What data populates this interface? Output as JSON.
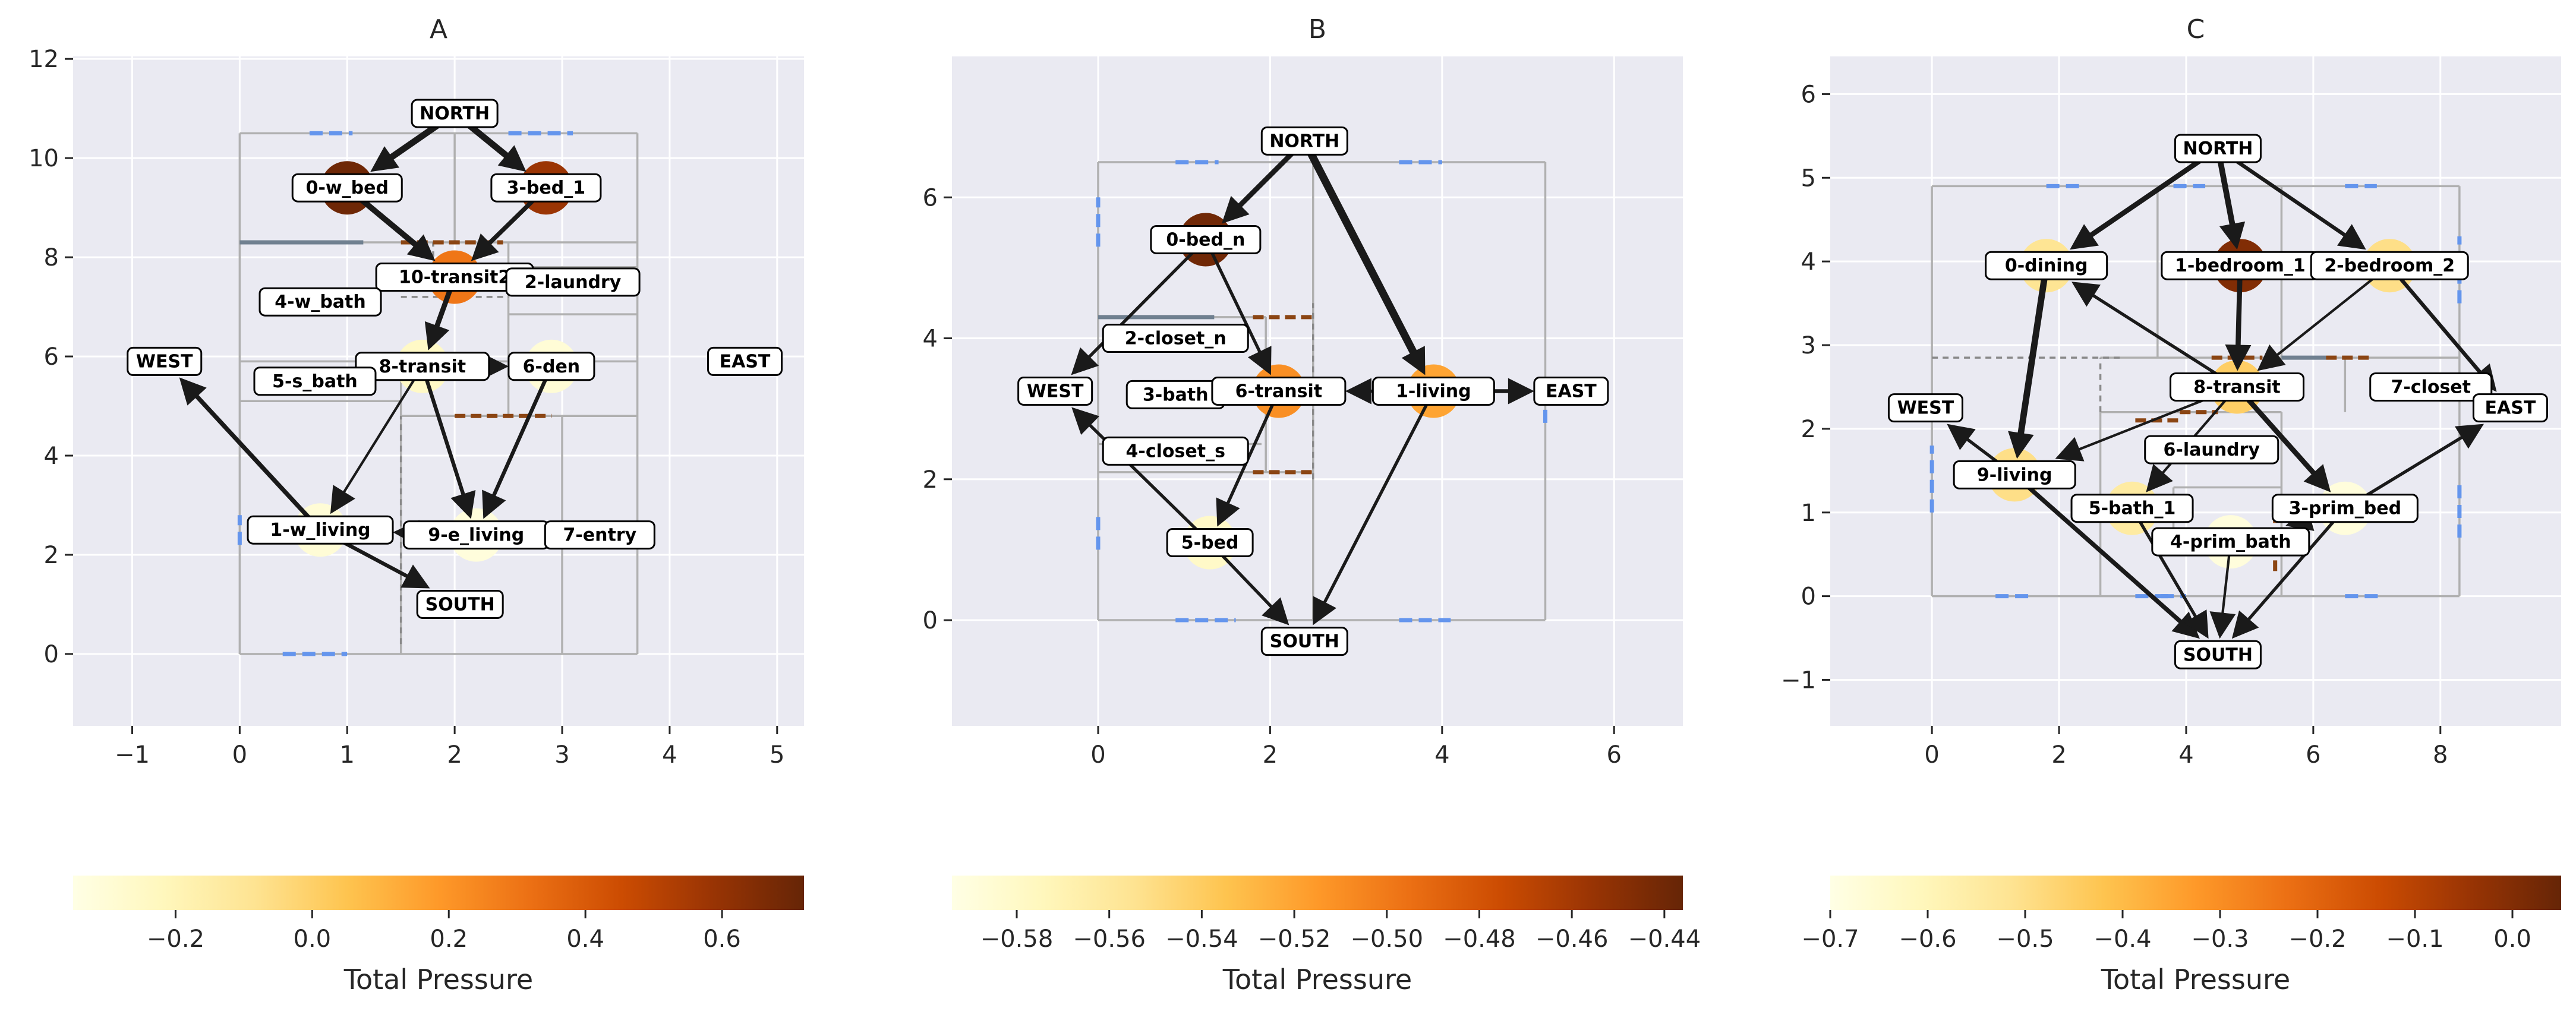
{
  "panels": [
    {
      "title": "A",
      "xlim": [
        -1.55,
        5.25
      ],
      "ylim": [
        -1.45,
        12.05
      ],
      "xticks": [
        -1,
        0,
        1,
        2,
        3,
        4,
        5
      ],
      "yticks": [
        0,
        2,
        4,
        6,
        8,
        10,
        12
      ],
      "walls": [
        [
          0,
          0,
          3.7,
          0
        ],
        [
          3.7,
          0,
          3.7,
          10.5
        ],
        [
          0,
          10.5,
          3.7,
          10.5
        ],
        [
          0,
          0,
          0,
          10.5
        ],
        [
          0,
          8.3,
          3.7,
          8.3
        ],
        [
          0,
          5.9,
          3.7,
          5.9
        ],
        [
          0,
          5.1,
          1.5,
          5.1
        ],
        [
          2.0,
          8.3,
          2.0,
          10.5
        ],
        [
          2.5,
          4.8,
          2.5,
          8.3
        ],
        [
          2.5,
          6.85,
          3.7,
          6.85
        ],
        [
          2.5,
          7.8,
          3.7,
          7.8
        ],
        [
          1.5,
          4.8,
          3.7,
          4.8
        ],
        [
          3.0,
          0,
          3.0,
          4.8
        ],
        [
          1.5,
          0,
          1.5,
          5.9
        ]
      ],
      "doors": [
        [
          1.5,
          0.2,
          1.5,
          4.8
        ],
        [
          1.5,
          7.2,
          2.5,
          7.2
        ],
        [
          1.8,
          8.0,
          1.8,
          8.3
        ]
      ],
      "windows": [
        [
          0.65,
          10.5,
          1.05,
          10.5
        ],
        [
          2.5,
          10.5,
          3.1,
          10.5
        ],
        [
          0.4,
          0,
          1.0,
          0
        ],
        [
          0,
          2.2,
          0,
          2.8
        ]
      ],
      "panes": [
        [
          0,
          8.3,
          1.15,
          8.3
        ]
      ],
      "openings": [
        [
          1.5,
          8.3,
          2.45,
          8.3
        ],
        [
          2.0,
          4.8,
          2.9,
          4.8
        ]
      ],
      "nodes": [
        {
          "id": "NORTH",
          "x": 2.0,
          "y": 10.9,
          "p": null
        },
        {
          "id": "0-w_bed",
          "x": 1.0,
          "y": 9.4,
          "p": 0.7
        },
        {
          "id": "3-bed_1",
          "x": 2.85,
          "y": 9.4,
          "p": 0.58
        },
        {
          "id": "10-transit2",
          "x": 2.0,
          "y": 7.6,
          "p": 0.3
        },
        {
          "id": "2-laundry",
          "x": 3.1,
          "y": 7.5,
          "p": null
        },
        {
          "id": "4-w_bath",
          "x": 0.75,
          "y": 7.1,
          "p": null
        },
        {
          "id": "8-transit",
          "x": 1.7,
          "y": 5.8,
          "p": -0.25
        },
        {
          "id": "6-den",
          "x": 2.9,
          "y": 5.8,
          "p": -0.3
        },
        {
          "id": "WEST",
          "x": -0.7,
          "y": 5.9,
          "p": null
        },
        {
          "id": "EAST",
          "x": 4.7,
          "y": 5.9,
          "p": null
        },
        {
          "id": "5-s_bath",
          "x": 0.7,
          "y": 5.5,
          "p": null
        },
        {
          "id": "1-w_living",
          "x": 0.75,
          "y": 2.5,
          "p": -0.3
        },
        {
          "id": "9-e_living",
          "x": 2.2,
          "y": 2.4,
          "p": -0.32
        },
        {
          "id": "7-entry",
          "x": 3.35,
          "y": 2.4,
          "p": null
        },
        {
          "id": "SOUTH",
          "x": 2.05,
          "y": 1.0,
          "p": null
        }
      ],
      "edges": [
        {
          "from": "NORTH",
          "to": "0-w_bed",
          "w": 8
        },
        {
          "from": "NORTH",
          "to": "3-bed_1",
          "w": 8
        },
        {
          "from": "0-w_bed",
          "to": "10-transit2",
          "w": 7
        },
        {
          "from": "3-bed_1",
          "to": "10-transit2",
          "w": 5
        },
        {
          "from": "10-transit2",
          "to": "8-transit",
          "w": 6
        },
        {
          "from": "8-transit",
          "to": "6-den",
          "w": 3
        },
        {
          "from": "8-transit",
          "to": "1-w_living",
          "w": 2
        },
        {
          "from": "8-transit",
          "to": "9-e_living",
          "w": 4
        },
        {
          "from": "6-den",
          "to": "9-e_living",
          "w": 4
        },
        {
          "from": "9-e_living",
          "to": "1-w_living",
          "w": 5
        },
        {
          "from": "1-w_living",
          "to": "WEST",
          "w": 5
        },
        {
          "from": "1-w_living",
          "to": "SOUTH",
          "w": 4
        }
      ],
      "colorbar": {
        "min": -0.35,
        "max": 0.72,
        "ticks": [
          -0.2,
          0.0,
          0.2,
          0.4,
          0.6
        ],
        "label": "Total Pressure"
      }
    },
    {
      "title": "B",
      "xlim": [
        -1.7,
        6.8
      ],
      "ylim": [
        -1.5,
        8.0
      ],
      "xticks": [
        0,
        2,
        4,
        6
      ],
      "yticks": [
        0,
        2,
        4,
        6
      ],
      "walls": [
        [
          0,
          0,
          5.2,
          0
        ],
        [
          5.2,
          0,
          5.2,
          6.5
        ],
        [
          0,
          6.5,
          5.2,
          6.5
        ],
        [
          0,
          0,
          0,
          6.5
        ],
        [
          2.5,
          0,
          2.5,
          6.5
        ],
        [
          0,
          4.3,
          1.95,
          4.3
        ],
        [
          1.95,
          2.1,
          1.95,
          4.3
        ],
        [
          0,
          2.1,
          2.5,
          2.1
        ],
        [
          0,
          2.5,
          1.9,
          2.5
        ]
      ],
      "doors": [
        [
          2.5,
          2.0,
          2.5,
          4.5
        ]
      ],
      "windows": [
        [
          0.9,
          6.5,
          1.4,
          6.5
        ],
        [
          3.5,
          6.5,
          4.0,
          6.5
        ],
        [
          0.9,
          0,
          1.6,
          0
        ],
        [
          3.5,
          0,
          4.1,
          0
        ],
        [
          0,
          5.3,
          0,
          6.0
        ],
        [
          0,
          1.0,
          0,
          1.5
        ],
        [
          5.2,
          2.8,
          5.2,
          3.2
        ]
      ],
      "panes": [
        [
          0,
          4.3,
          1.35,
          4.3
        ]
      ],
      "openings": [
        [
          1.8,
          4.3,
          2.5,
          4.3
        ],
        [
          1.8,
          2.1,
          2.5,
          2.1
        ]
      ],
      "nodes": [
        {
          "id": "NORTH",
          "x": 2.4,
          "y": 6.8,
          "p": null
        },
        {
          "id": "0-bed_n",
          "x": 1.25,
          "y": 5.4,
          "p": -0.44
        },
        {
          "id": "2-closet_n",
          "x": 0.9,
          "y": 4.0,
          "p": null
        },
        {
          "id": "WEST",
          "x": -0.5,
          "y": 3.25,
          "p": null
        },
        {
          "id": "3-bath",
          "x": 0.9,
          "y": 3.2,
          "p": null
        },
        {
          "id": "6-transit",
          "x": 2.1,
          "y": 3.25,
          "p": -0.51
        },
        {
          "id": "1-living",
          "x": 3.9,
          "y": 3.25,
          "p": -0.52
        },
        {
          "id": "EAST",
          "x": 5.5,
          "y": 3.25,
          "p": null
        },
        {
          "id": "4-closet_s",
          "x": 0.9,
          "y": 2.4,
          "p": null
        },
        {
          "id": "5-bed",
          "x": 1.3,
          "y": 1.1,
          "p": -0.58
        },
        {
          "id": "SOUTH",
          "x": 2.4,
          "y": -0.3,
          "p": null
        }
      ],
      "edges": [
        {
          "from": "NORTH",
          "to": "0-bed_n",
          "w": 6
        },
        {
          "from": "NORTH",
          "to": "1-living",
          "w": 10
        },
        {
          "from": "0-bed_n",
          "to": "WEST",
          "w": 3
        },
        {
          "from": "0-bed_n",
          "to": "6-transit",
          "w": 3
        },
        {
          "from": "6-transit",
          "to": "5-bed",
          "w": 3
        },
        {
          "from": "1-living",
          "to": "6-transit",
          "w": 3
        },
        {
          "from": "1-living",
          "to": "EAST",
          "w": 4
        },
        {
          "from": "1-living",
          "to": "SOUTH",
          "w": 3
        },
        {
          "from": "5-bed",
          "to": "WEST",
          "w": 3
        },
        {
          "from": "5-bed",
          "to": "SOUTH",
          "w": 3
        }
      ],
      "colorbar": {
        "min": -0.594,
        "max": -0.436,
        "ticks": [
          -0.58,
          -0.56,
          -0.54,
          -0.52,
          -0.5,
          -0.48,
          -0.46,
          -0.44
        ],
        "label": "Total Pressure"
      }
    },
    {
      "title": "C",
      "xlim": [
        -1.6,
        9.9
      ],
      "ylim": [
        -1.55,
        6.45
      ],
      "xticks": [
        0,
        2,
        4,
        6,
        8
      ],
      "yticks": [
        -1,
        0,
        1,
        2,
        3,
        4,
        5,
        6
      ],
      "walls": [
        [
          0,
          0,
          8.3,
          0
        ],
        [
          8.3,
          0,
          8.3,
          4.9
        ],
        [
          0,
          4.9,
          8.3,
          4.9
        ],
        [
          0,
          0,
          0,
          4.9
        ],
        [
          3.55,
          2.85,
          3.55,
          4.9
        ],
        [
          5.5,
          2.85,
          5.5,
          4.9
        ],
        [
          2.65,
          2.85,
          8.3,
          2.85
        ],
        [
          6.5,
          2.2,
          6.5,
          2.85
        ],
        [
          2.65,
          0,
          2.65,
          2.2
        ],
        [
          2.65,
          2.2,
          5.5,
          2.2
        ],
        [
          3.8,
          1.3,
          5.5,
          1.3
        ],
        [
          5.5,
          0,
          5.5,
          2.2
        ],
        [
          3.8,
          0.5,
          3.8,
          1.3
        ]
      ],
      "doors": [
        [
          0,
          2.85,
          3.0,
          2.85
        ],
        [
          2.65,
          2.2,
          2.65,
          2.85
        ]
      ],
      "windows": [
        [
          1.8,
          4.9,
          2.4,
          4.9
        ],
        [
          3.8,
          4.9,
          4.3,
          4.9
        ],
        [
          6.5,
          4.9,
          7.0,
          4.9
        ],
        [
          1.0,
          0,
          1.6,
          0
        ],
        [
          3.2,
          0,
          3.8,
          0
        ],
        [
          6.5,
          0,
          7.1,
          0
        ],
        [
          0,
          1.0,
          0,
          1.8
        ],
        [
          8.3,
          0.7,
          8.3,
          1.4
        ],
        [
          8.3,
          3.5,
          8.3,
          4.3
        ],
        [
          3.6,
          0,
          4.0,
          0
        ]
      ],
      "panes": [
        [
          5.5,
          2.85,
          6.2,
          2.85
        ]
      ],
      "openings": [
        [
          4.4,
          2.85,
          5.2,
          2.85
        ],
        [
          6.2,
          2.85,
          6.9,
          2.85
        ],
        [
          3.2,
          2.1,
          3.9,
          2.1
        ],
        [
          5.4,
          0.3,
          5.4,
          1.1
        ],
        [
          3.9,
          2.2,
          4.5,
          2.2
        ]
      ],
      "nodes": [
        {
          "id": "NORTH",
          "x": 4.5,
          "y": 5.35,
          "p": null
        },
        {
          "id": "0-dining",
          "x": 1.8,
          "y": 3.95,
          "p": -0.52
        },
        {
          "id": "1-bedroom_1",
          "x": 4.85,
          "y": 3.95,
          "p": 0.0
        },
        {
          "id": "2-bedroom_2",
          "x": 7.2,
          "y": 3.95,
          "p": -0.5
        },
        {
          "id": "8-transit",
          "x": 4.8,
          "y": 2.5,
          "p": -0.45
        },
        {
          "id": "7-closet",
          "x": 7.85,
          "y": 2.5,
          "p": null
        },
        {
          "id": "WEST",
          "x": -0.1,
          "y": 2.25,
          "p": null
        },
        {
          "id": "EAST",
          "x": 9.1,
          "y": 2.25,
          "p": null
        },
        {
          "id": "6-laundry",
          "x": 4.4,
          "y": 1.75,
          "p": null
        },
        {
          "id": "9-living",
          "x": 1.3,
          "y": 1.45,
          "p": -0.5
        },
        {
          "id": "5-bath_1",
          "x": 3.15,
          "y": 1.05,
          "p": -0.55
        },
        {
          "id": "3-prim_bed",
          "x": 6.5,
          "y": 1.05,
          "p": -0.68
        },
        {
          "id": "4-prim_bath",
          "x": 4.7,
          "y": 0.65,
          "p": -0.68
        },
        {
          "id": "SOUTH",
          "x": 4.5,
          "y": -0.7,
          "p": null
        }
      ],
      "edges": [
        {
          "from": "NORTH",
          "to": "0-dining",
          "w": 6
        },
        {
          "from": "NORTH",
          "to": "1-bedroom_1",
          "w": 7
        },
        {
          "from": "NORTH",
          "to": "2-bedroom_2",
          "w": 4
        },
        {
          "from": "1-bedroom_1",
          "to": "8-transit",
          "w": 6
        },
        {
          "from": "2-bedroom_2",
          "to": "8-transit",
          "w": 2
        },
        {
          "from": "2-bedroom_2",
          "to": "EAST",
          "w": 4
        },
        {
          "from": "0-dining",
          "to": "9-living",
          "w": 8
        },
        {
          "from": "8-transit",
          "to": "0-dining",
          "w": 3
        },
        {
          "from": "8-transit",
          "to": "9-living",
          "w": 2
        },
        {
          "from": "8-transit",
          "to": "5-bath_1",
          "w": 2
        },
        {
          "from": "8-transit",
          "to": "3-prim_bed",
          "w": 6
        },
        {
          "from": "9-living",
          "to": "WEST",
          "w": 3
        },
        {
          "from": "9-living",
          "to": "SOUTH",
          "w": 5
        },
        {
          "from": "3-prim_bed",
          "to": "4-prim_bath",
          "w": 2
        },
        {
          "from": "3-prim_bed",
          "to": "EAST",
          "w": 3
        },
        {
          "from": "3-prim_bed",
          "to": "SOUTH",
          "w": 3
        },
        {
          "from": "5-bath_1",
          "to": "SOUTH",
          "w": 3
        },
        {
          "from": "4-prim_bath",
          "to": "SOUTH",
          "w": 2
        }
      ],
      "colorbar": {
        "min": -0.7,
        "max": 0.05,
        "ticks": [
          -0.7,
          -0.6,
          -0.5,
          -0.4,
          -0.3,
          -0.2,
          -0.1,
          0.0
        ],
        "label": "Total Pressure"
      }
    }
  ],
  "colors": {
    "axes_bg": "#eaeaf2",
    "grid": "#ffffff",
    "wall": "#b0b0b0",
    "door": "#8a8a8a",
    "window": "#6495ed",
    "pane": "#708090",
    "opening": "#8b4513",
    "edge": "#1a1a1a",
    "cmap": [
      "#ffffe5",
      "#fff7bc",
      "#fee391",
      "#fec44f",
      "#fe9929",
      "#ec7014",
      "#cc4c02",
      "#993404",
      "#662506"
    ]
  }
}
